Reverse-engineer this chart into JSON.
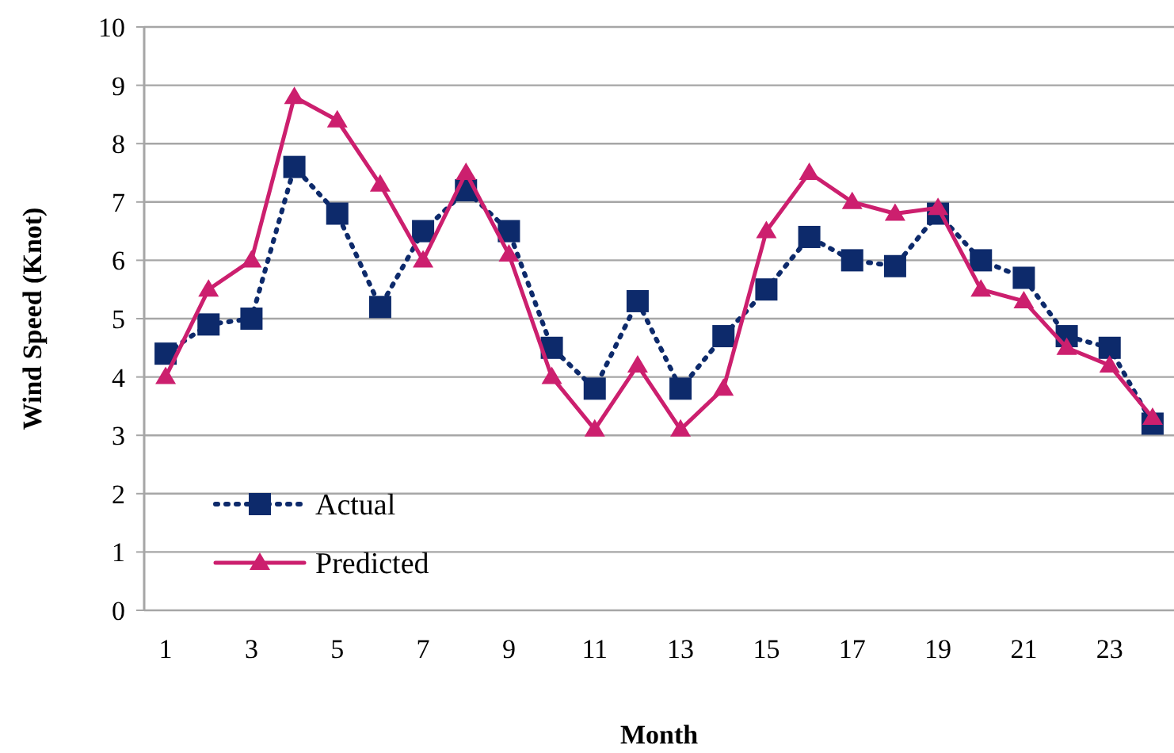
{
  "chart_data": {
    "type": "line",
    "xlabel": "Month",
    "ylabel": "Wind Speed (Knot)",
    "x": [
      1,
      2,
      3,
      4,
      5,
      6,
      7,
      8,
      9,
      10,
      11,
      12,
      13,
      14,
      15,
      16,
      17,
      18,
      19,
      20,
      21,
      22,
      23,
      24
    ],
    "xlim": [
      0.5,
      24.5
    ],
    "xticks": [
      1,
      3,
      5,
      7,
      9,
      11,
      13,
      15,
      17,
      19,
      21,
      23
    ],
    "series": [
      {
        "name": "Actual",
        "color": "#0d2a6b",
        "marker": "square",
        "line_style": "dotted",
        "values": [
          4.4,
          4.9,
          5.0,
          7.6,
          6.8,
          5.2,
          6.5,
          7.2,
          6.5,
          4.5,
          3.8,
          5.3,
          3.8,
          4.7,
          5.5,
          6.4,
          6.0,
          5.9,
          6.8,
          6.0,
          5.7,
          4.7,
          4.5,
          3.2
        ]
      },
      {
        "name": "Predicted",
        "color": "#cc1f6e",
        "marker": "triangle",
        "line_style": "solid",
        "values": [
          4.0,
          5.5,
          6.0,
          8.8,
          8.4,
          7.3,
          6.0,
          7.5,
          6.1,
          4.0,
          3.1,
          4.2,
          3.1,
          3.8,
          6.5,
          7.5,
          7.0,
          6.8,
          6.9,
          5.5,
          5.3,
          4.5,
          4.2,
          3.3
        ]
      }
    ],
    "ylim": [
      0,
      10
    ],
    "yticks": [
      0,
      1,
      2,
      3,
      4,
      5,
      6,
      7,
      8,
      9,
      10
    ],
    "grid": "y",
    "legend": "bottom left"
  }
}
